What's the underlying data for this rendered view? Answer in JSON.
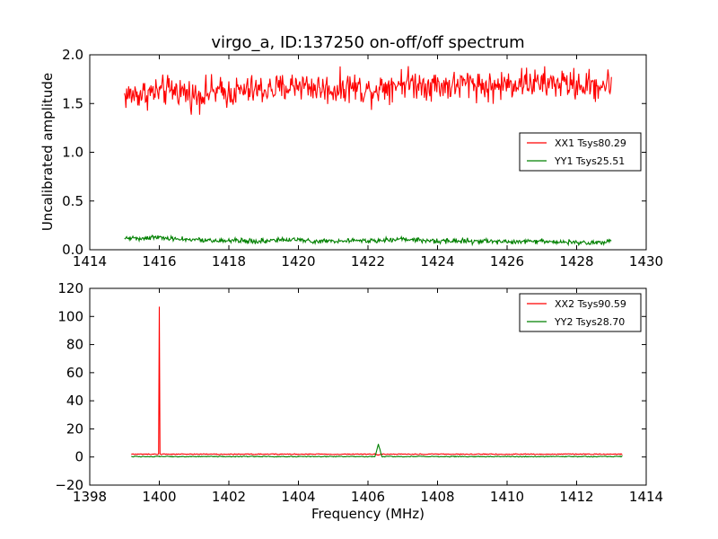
{
  "figure": {
    "background": "#ffffff"
  },
  "chart_data": [
    {
      "type": "line",
      "title": "virgo_a, ID:137250 on-off/off spectrum",
      "xlabel": "",
      "ylabel": "Uncalibrated amplitude",
      "xlim": [
        1414,
        1430
      ],
      "ylim": [
        0.0,
        2.0
      ],
      "x_ticks": [
        "1414",
        "1416",
        "1418",
        "1420",
        "1422",
        "1424",
        "1426",
        "1428",
        "1430"
      ],
      "y_ticks": [
        "0.0",
        "0.5",
        "1.0",
        "1.5",
        "2.0"
      ],
      "grid": false,
      "legend_position": "center-right",
      "x": [
        1415.0,
        1415.5,
        1416.0,
        1416.5,
        1417.0,
        1417.5,
        1418.0,
        1418.5,
        1419.0,
        1419.5,
        1420.0,
        1420.5,
        1421.0,
        1421.5,
        1422.0,
        1422.5,
        1423.0,
        1423.5,
        1424.0,
        1424.5,
        1425.0,
        1425.5,
        1426.0,
        1426.5,
        1427.0,
        1427.5,
        1428.0,
        1428.5,
        1429.0
      ],
      "series": [
        {
          "name": "XX1 Tsys80.29",
          "color": "#ff0000",
          "values": [
            1.58,
            1.6,
            1.62,
            1.64,
            1.58,
            1.62,
            1.61,
            1.63,
            1.64,
            1.65,
            1.7,
            1.66,
            1.64,
            1.68,
            1.63,
            1.68,
            1.72,
            1.7,
            1.69,
            1.68,
            1.72,
            1.66,
            1.7,
            1.72,
            1.7,
            1.71,
            1.69,
            1.68,
            1.7
          ]
        },
        {
          "name": "YY1 Tsys25.51",
          "color": "#008000",
          "values": [
            0.12,
            0.12,
            0.13,
            0.11,
            0.1,
            0.09,
            0.1,
            0.09,
            0.09,
            0.1,
            0.1,
            0.09,
            0.09,
            0.1,
            0.09,
            0.1,
            0.11,
            0.1,
            0.09,
            0.09,
            0.09,
            0.09,
            0.08,
            0.08,
            0.09,
            0.08,
            0.08,
            0.07,
            0.09
          ]
        }
      ]
    },
    {
      "type": "line",
      "title": "",
      "xlabel": "Frequency (MHz)",
      "ylabel": "",
      "xlim": [
        1398,
        1414
      ],
      "ylim": [
        -20,
        120
      ],
      "x_ticks": [
        "1398",
        "1400",
        "1402",
        "1404",
        "1406",
        "1408",
        "1410",
        "1412",
        "1414"
      ],
      "y_ticks": [
        "−20",
        "0",
        "20",
        "40",
        "60",
        "80",
        "100",
        "120"
      ],
      "grid": false,
      "legend_position": "top-right",
      "series": [
        {
          "name": "XX2 Tsys90.59",
          "color": "#ff0000",
          "x": [
            1399.2,
            1399.98,
            1400.0,
            1400.02,
            1402.0,
            1404.0,
            1406.2,
            1406.3,
            1406.4,
            1408.0,
            1410.0,
            1412.0,
            1413.3
          ],
          "values": [
            2.0,
            2.0,
            107.0,
            2.0,
            2.0,
            2.0,
            2.0,
            1.5,
            2.0,
            2.0,
            2.0,
            2.0,
            2.0
          ]
        },
        {
          "name": "YY2 Tsys28.70",
          "color": "#008000",
          "x": [
            1399.2,
            1400.0,
            1402.0,
            1404.0,
            1406.2,
            1406.3,
            1406.4,
            1408.0,
            1410.0,
            1412.0,
            1413.3
          ],
          "values": [
            0.3,
            0.3,
            0.3,
            0.3,
            0.3,
            9.0,
            0.3,
            0.3,
            0.3,
            0.3,
            0.3
          ]
        }
      ]
    }
  ]
}
